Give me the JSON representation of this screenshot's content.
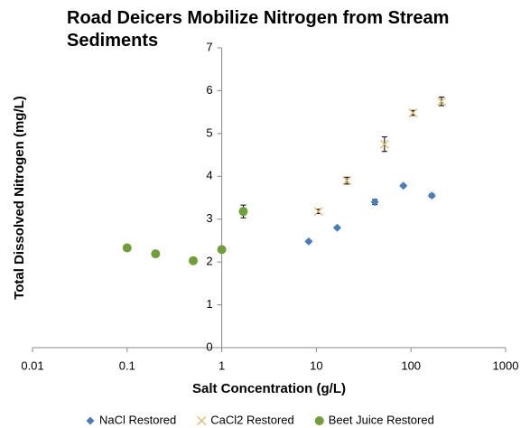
{
  "chart_data": {
    "type": "scatter",
    "title": "Road Deicers Mobilize Nitrogen from Stream Sediments",
    "x_label": "Salt Concentration (g/L)",
    "y_label": "Total Dissolved Nitrogen (mg/L)",
    "xscale": "log",
    "xlim": [
      0.01,
      1000
    ],
    "xticks": [
      0.01,
      0.1,
      1,
      10,
      100,
      1000
    ],
    "ylim": [
      0,
      7
    ],
    "yticks": [
      0,
      1,
      2,
      3,
      4,
      5,
      6,
      7
    ],
    "y_axis_at_x": 1,
    "legend": "bottom",
    "series": [
      {
        "name": "NaCl Restored",
        "color": "#4a7ebb",
        "marker": "diamond",
        "x": [
          8.3,
          16.6,
          41.5,
          83,
          166
        ],
        "values": [
          2.48,
          2.8,
          3.4,
          3.78,
          3.55
        ],
        "errors": [
          0.03,
          0.03,
          0.06,
          0.03,
          0.04
        ]
      },
      {
        "name": "CaCl2 Restored",
        "color": "#e2b872",
        "marker": "x",
        "x": [
          10.5,
          21,
          52.5,
          105,
          210
        ],
        "values": [
          3.18,
          3.9,
          4.75,
          5.48,
          5.75
        ],
        "errors": [
          0.05,
          0.08,
          0.17,
          0.06,
          0.1
        ]
      },
      {
        "name": "Beet Juice Restored",
        "color": "#6f9e3a",
        "marker": "circle",
        "x": [
          0.1,
          0.2,
          0.5,
          1,
          1.69
        ],
        "values": [
          2.33,
          2.19,
          2.03,
          2.29,
          3.18
        ],
        "errors": [
          null,
          null,
          null,
          null,
          0.15
        ]
      }
    ]
  }
}
